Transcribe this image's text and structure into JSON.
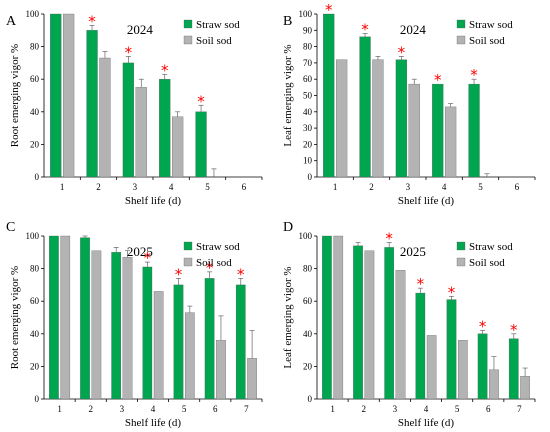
{
  "chart_data": [
    {
      "type": "bar",
      "panel": "A",
      "title": "2024",
      "xlabel": "Shelf life (d)",
      "ylabel": "Root emerging vigor %",
      "ylim": [
        0,
        100
      ],
      "yticks": [
        0,
        20,
        40,
        60,
        80,
        100
      ],
      "categories": [
        "1",
        "2",
        "3",
        "4",
        "5",
        "6"
      ],
      "legend_position": "top-right",
      "series": [
        {
          "name": "Straw sod",
          "color": "#00a550",
          "values": [
            100,
            90,
            70,
            60,
            40,
            0
          ],
          "errors": [
            0,
            3,
            4,
            3,
            4,
            0
          ]
        },
        {
          "name": "Soil sod",
          "color": "#b3b3b3",
          "values": [
            100,
            73,
            55,
            37,
            0,
            0
          ],
          "errors": [
            0,
            4,
            5,
            3,
            5,
            0
          ]
        }
      ],
      "significance_markers": [
        false,
        true,
        true,
        true,
        true,
        false
      ],
      "marker_symbol": "*"
    },
    {
      "type": "bar",
      "panel": "B",
      "title": "2024",
      "xlabel": "Shelf life (d)",
      "ylabel": "Leaf emerging vigor %",
      "ylim": [
        0,
        100
      ],
      "yticks": [
        0,
        10,
        20,
        30,
        40,
        50,
        60,
        70,
        80,
        90,
        100
      ],
      "categories": [
        "1",
        "2",
        "3",
        "4",
        "5",
        "6"
      ],
      "legend_position": "top-right",
      "series": [
        {
          "name": "Straw sod",
          "color": "#00a550",
          "values": [
            100,
            86,
            72,
            57,
            57,
            0
          ],
          "errors": [
            0,
            2,
            2,
            0,
            3,
            0
          ]
        },
        {
          "name": "Soil sod",
          "color": "#b3b3b3",
          "values": [
            72,
            72,
            57,
            43,
            0,
            0
          ],
          "errors": [
            0,
            2,
            3,
            2,
            2,
            0
          ]
        }
      ],
      "significance_markers": [
        true,
        true,
        true,
        true,
        true,
        false
      ],
      "marker_symbol": "*"
    },
    {
      "type": "bar",
      "panel": "C",
      "title": "2025",
      "xlabel": "Shelf life (d)",
      "ylabel": "Root emerging vigor %",
      "ylim": [
        0,
        100
      ],
      "yticks": [
        0,
        20,
        40,
        60,
        80,
        100
      ],
      "categories": [
        "1",
        "2",
        "3",
        "4",
        "5",
        "6",
        "7"
      ],
      "legend_position": "top-right",
      "series": [
        {
          "name": "Straw sod",
          "color": "#00a550",
          "values": [
            100,
            99,
            90,
            81,
            70,
            74,
            70
          ],
          "errors": [
            0,
            1,
            3,
            3,
            4,
            4,
            4
          ]
        },
        {
          "name": "Soil sod",
          "color": "#b3b3b3",
          "values": [
            100,
            91,
            87,
            66,
            53,
            36,
            25
          ],
          "errors": [
            0,
            0,
            4,
            0,
            4,
            15,
            17
          ]
        }
      ],
      "significance_markers": [
        false,
        false,
        false,
        true,
        true,
        true,
        true
      ],
      "marker_symbol": "*"
    },
    {
      "type": "bar",
      "panel": "D",
      "title": "2025",
      "xlabel": "Shelf life (d)",
      "ylabel": "Leaf emerging vigor %",
      "ylim": [
        0,
        100
      ],
      "yticks": [
        0,
        20,
        40,
        60,
        80,
        100
      ],
      "categories": [
        "1",
        "2",
        "3",
        "4",
        "5",
        "6",
        "7"
      ],
      "legend_position": "top-right",
      "series": [
        {
          "name": "Straw sod",
          "color": "#00a550",
          "values": [
            100,
            94,
            93,
            65,
            61,
            40,
            37
          ],
          "errors": [
            0,
            2,
            3,
            3,
            2,
            2,
            3
          ]
        },
        {
          "name": "Soil sod",
          "color": "#b3b3b3",
          "values": [
            100,
            91,
            79,
            39,
            36,
            18,
            14
          ],
          "errors": [
            0,
            0,
            0,
            0,
            0,
            8,
            5
          ]
        }
      ],
      "significance_markers": [
        false,
        false,
        true,
        true,
        true,
        true,
        true
      ],
      "marker_symbol": "*"
    }
  ]
}
